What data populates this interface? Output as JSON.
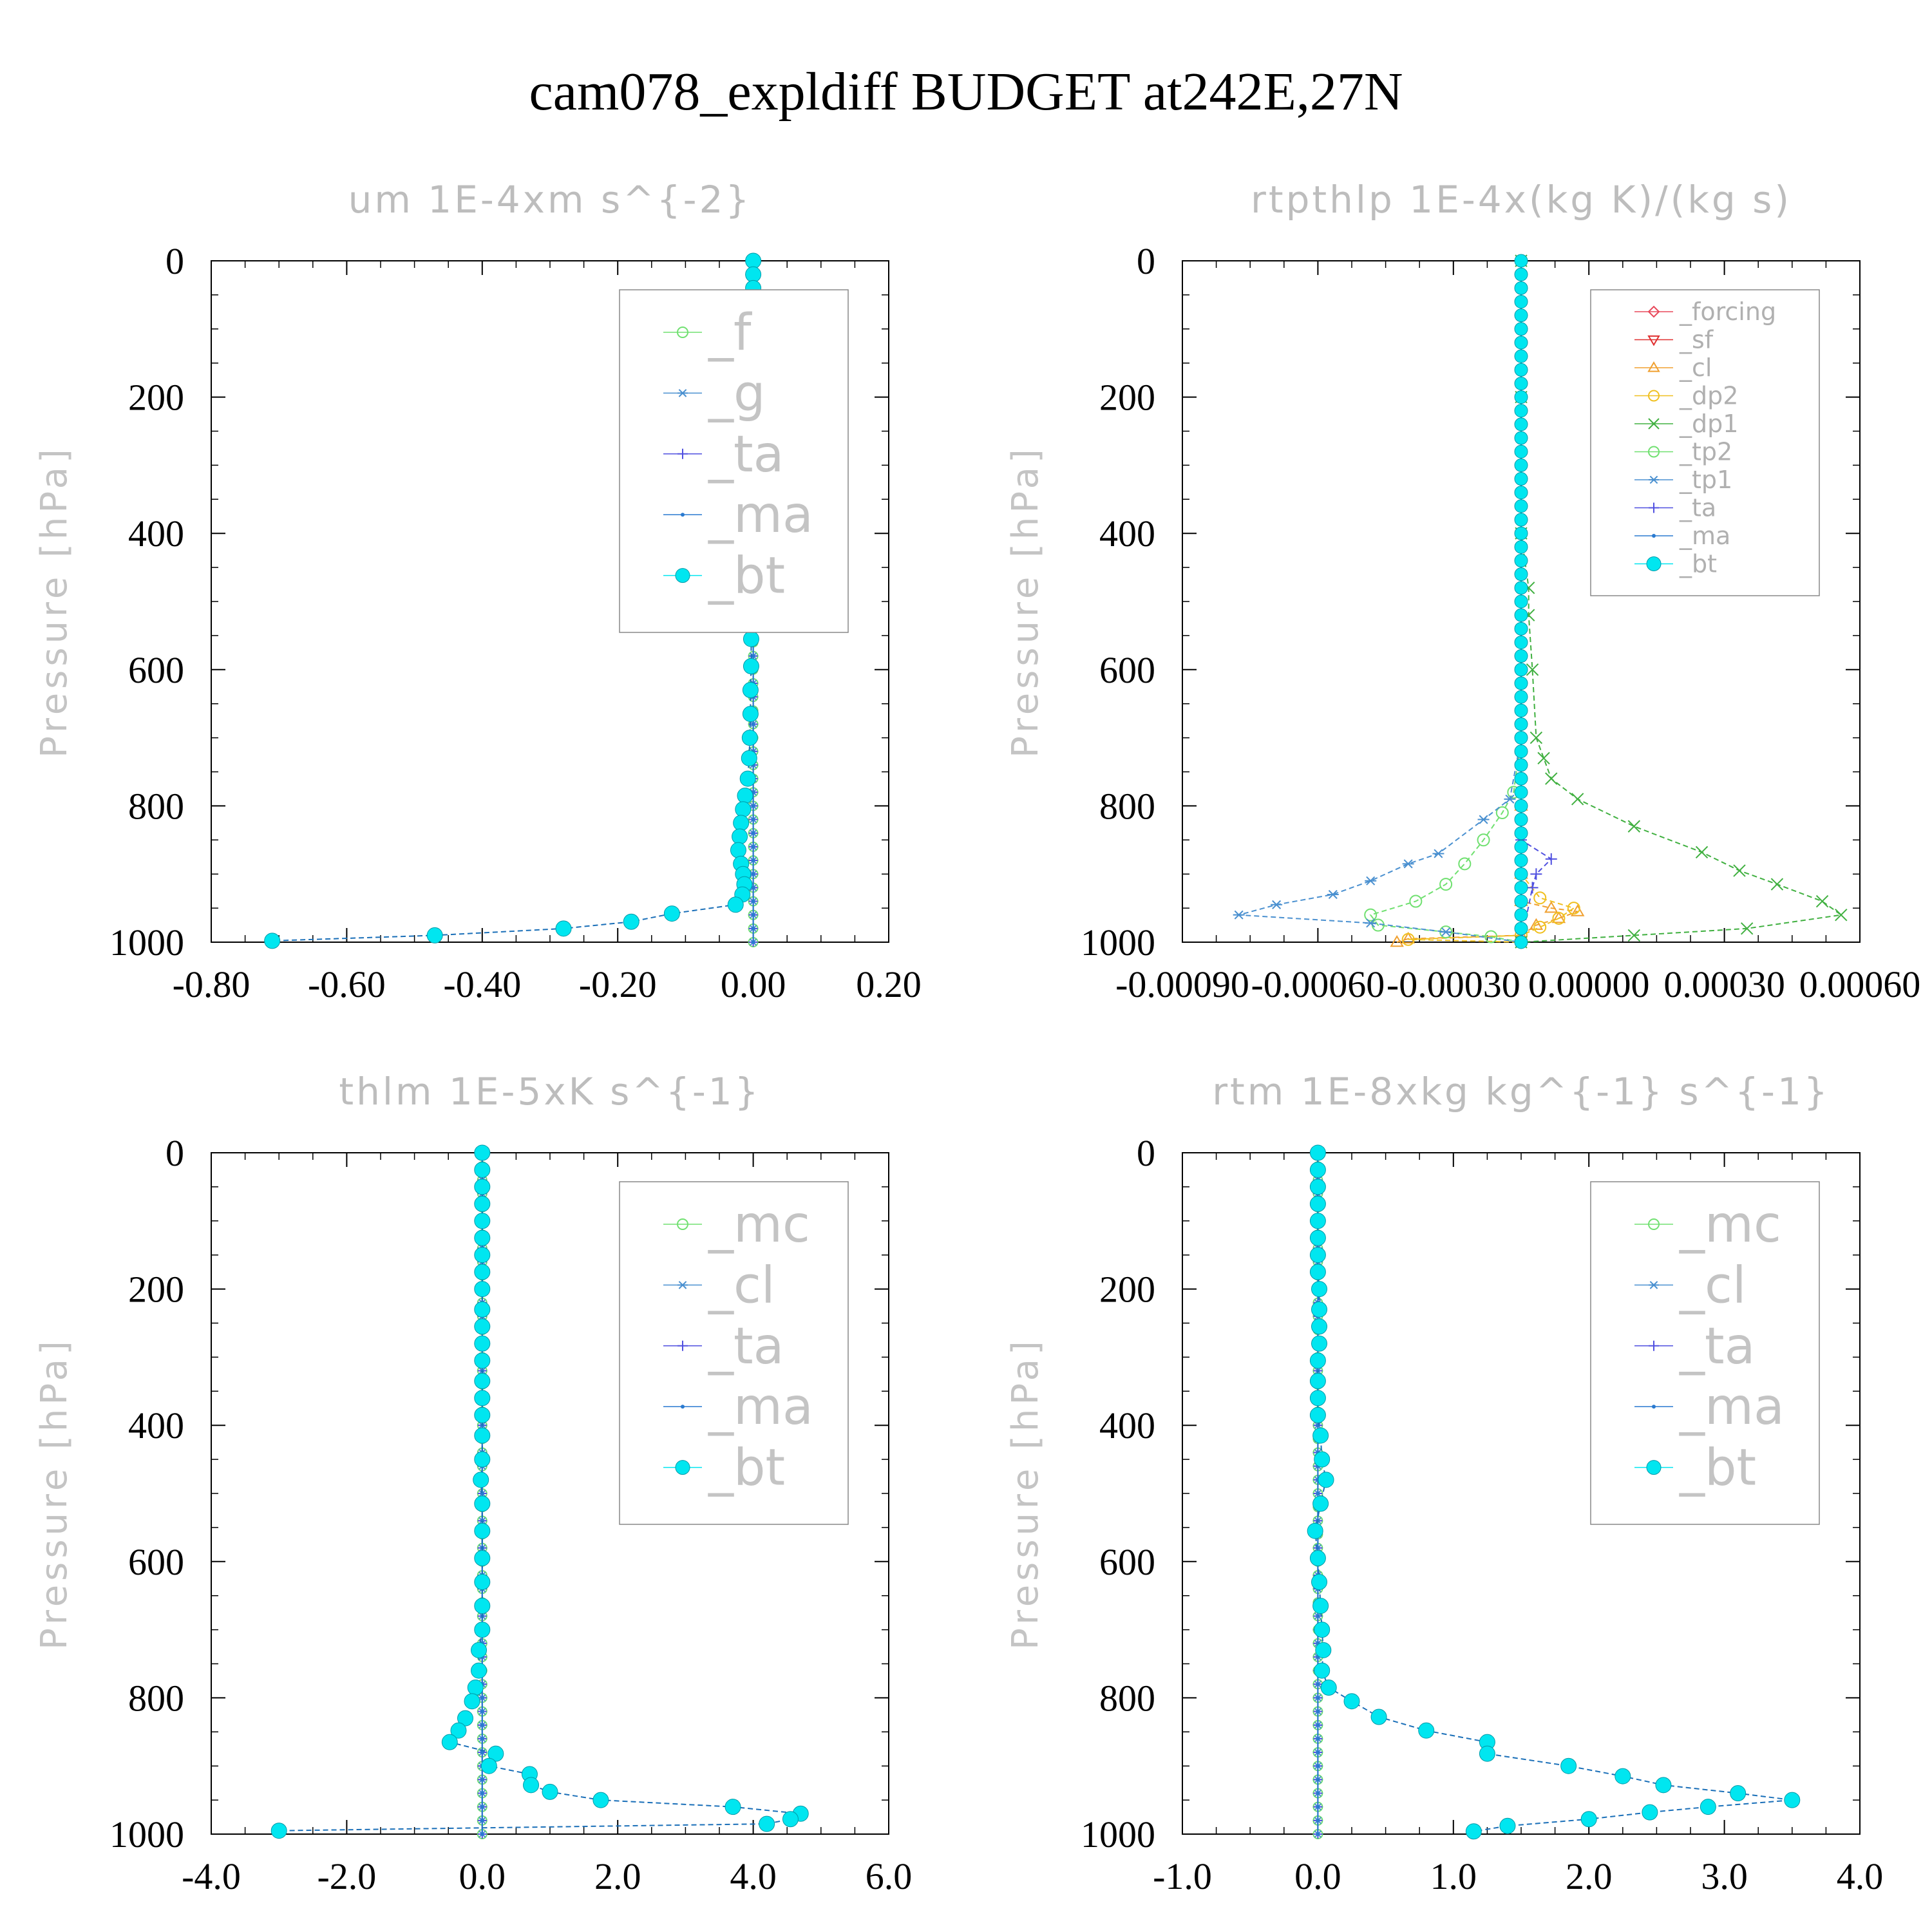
{
  "figure": {
    "title": "cam078_expldiff  BUDGET at242E,27N"
  },
  "colors": {
    "forcing": "#e8485a",
    "sf": "#e03030",
    "cl_small": "#f0a030",
    "dp2": "#f0c020",
    "dp1": "#40b040",
    "tp2": "#70e070",
    "tp1": "#4a90d0",
    "ta": "#5050e0",
    "ma": "#2a7ad0",
    "bt": "#00e6f0",
    "f": "#70e070",
    "g": "#4a90d0",
    "mc": "#70e070",
    "cl": "#4a90d0"
  },
  "chart_data": [
    {
      "type": "line",
      "title": "um  1E-4xm s^{-2}",
      "ylabel": "Pressure [hPa]",
      "xlim": [
        -0.8,
        0.2
      ],
      "ylim": [
        1000,
        0
      ],
      "xticks": [
        "-0.80",
        "-0.60",
        "-0.40",
        "-0.20",
        "0.00",
        "0.20"
      ],
      "yticks": [
        "0",
        "200",
        "400",
        "600",
        "800",
        "1000"
      ],
      "legend": {
        "position": "top-right",
        "size": "large"
      },
      "series": [
        {
          "name": "_f",
          "key": "f",
          "marker": "circle",
          "zero": true
        },
        {
          "name": "_g",
          "key": "g",
          "marker": "star",
          "zero": true
        },
        {
          "name": "_ta",
          "key": "ta",
          "marker": "plus",
          "zero": true
        },
        {
          "name": "_ma",
          "key": "ma",
          "marker": "dot",
          "zero": true
        },
        {
          "name": "_bt",
          "key": "bt",
          "marker": "filled",
          "points": [
            [
              0.0,
              0
            ],
            [
              0.0,
              20
            ],
            [
              0.0,
              40
            ],
            [
              0.0,
              60
            ],
            [
              0.0,
              80
            ],
            [
              0.0,
              100
            ],
            [
              0.0,
              120
            ],
            [
              0.0,
              140
            ],
            [
              0.0,
              160
            ],
            [
              -0.002,
              180
            ],
            [
              0.0,
              200
            ],
            [
              0.0,
              230
            ],
            [
              0.0,
              250
            ],
            [
              0.0,
              270
            ],
            [
              -0.002,
              290
            ],
            [
              0.0,
              315
            ],
            [
              -0.001,
              340
            ],
            [
              -0.001,
              360
            ],
            [
              -0.002,
              385
            ],
            [
              -0.002,
              415
            ],
            [
              -0.003,
              450
            ],
            [
              -0.004,
              480
            ],
            [
              -0.003,
              515
            ],
            [
              -0.003,
              555
            ],
            [
              -0.003,
              595
            ],
            [
              -0.004,
              630
            ],
            [
              -0.004,
              665
            ],
            [
              -0.005,
              700
            ],
            [
              -0.006,
              730
            ],
            [
              -0.008,
              760
            ],
            [
              -0.012,
              785
            ],
            [
              -0.015,
              805
            ],
            [
              -0.018,
              825
            ],
            [
              -0.02,
              845
            ],
            [
              -0.022,
              865
            ],
            [
              -0.018,
              885
            ],
            [
              -0.015,
              900
            ],
            [
              -0.013,
              915
            ],
            [
              -0.016,
              930
            ],
            [
              -0.026,
              945
            ],
            [
              -0.12,
              958
            ],
            [
              -0.18,
              970
            ],
            [
              -0.28,
              980
            ],
            [
              -0.47,
              990
            ],
            [
              -0.71,
              998
            ]
          ]
        }
      ]
    },
    {
      "type": "line",
      "title": "rtpthlp  1E-4x(kg K)/(kg s)",
      "ylabel": "Pressure [hPa]",
      "xlim": [
        -0.0009,
        0.0009
      ],
      "ylim": [
        1000,
        0
      ],
      "xticks": [
        "-0.00090",
        "-0.00060",
        "-0.00030",
        "0.00000",
        "0.00030",
        "0.00060"
      ],
      "yticks": [
        "0",
        "200",
        "400",
        "600",
        "800",
        "1000"
      ],
      "legend": {
        "position": "top-right",
        "size": "small"
      },
      "series": [
        {
          "name": "_forcing",
          "key": "forcing",
          "marker": "diamond",
          "zero": true
        },
        {
          "name": "_sf",
          "key": "sf",
          "marker": "tri-down",
          "zero": true
        },
        {
          "name": "_cl",
          "key": "cl_small",
          "marker": "tri-up",
          "points": [
            [
              0.0,
              800
            ],
            [
              0.0,
              900
            ],
            [
              0.0,
              940
            ],
            [
              8e-05,
              950
            ],
            [
              0.00015,
              955
            ],
            [
              0.0001,
              965
            ],
            [
              4e-05,
              975
            ],
            [
              0.0,
              990
            ],
            [
              -0.0003,
              995
            ],
            [
              -0.00033,
              1000
            ]
          ]
        },
        {
          "name": "_dp2",
          "key": "dp2",
          "marker": "circle",
          "points": [
            [
              0.0,
              800
            ],
            [
              0.0,
              900
            ],
            [
              5e-05,
              935
            ],
            [
              0.00014,
              950
            ],
            [
              0.0001,
              965
            ],
            [
              5e-05,
              978
            ],
            [
              0.0,
              990
            ],
            [
              -0.0003,
              996
            ],
            [
              0.0,
              1000
            ]
          ]
        },
        {
          "name": "_dp1",
          "key": "dp1",
          "marker": "x",
          "points": [
            [
              0.0,
              0
            ],
            [
              0.0,
              200
            ],
            [
              0.0,
              400
            ],
            [
              2e-05,
              480
            ],
            [
              2e-05,
              520
            ],
            [
              3e-05,
              600
            ],
            [
              4e-05,
              700
            ],
            [
              6e-05,
              730
            ],
            [
              8e-05,
              760
            ],
            [
              0.00015,
              790
            ],
            [
              0.0003,
              830
            ],
            [
              0.00048,
              868
            ],
            [
              0.00058,
              895
            ],
            [
              0.00068,
              915
            ],
            [
              0.0008,
              940
            ],
            [
              0.00085,
              960
            ],
            [
              0.0006,
              980
            ],
            [
              0.0003,
              990
            ],
            [
              0.0,
              1000
            ]
          ]
        },
        {
          "name": "_tp2",
          "key": "tp2",
          "marker": "circle",
          "points": [
            [
              0.0,
              0
            ],
            [
              0.0,
              700
            ],
            [
              -2e-05,
              780
            ],
            [
              -5e-05,
              810
            ],
            [
              -0.0001,
              850
            ],
            [
              -0.00015,
              885
            ],
            [
              -0.0002,
              915
            ],
            [
              -0.00028,
              940
            ],
            [
              -0.0004,
              960
            ],
            [
              -0.00038,
              975
            ],
            [
              -0.0002,
              985
            ],
            [
              -8e-05,
              992
            ],
            [
              0.0,
              1000
            ]
          ]
        },
        {
          "name": "_tp1",
          "key": "tp1",
          "marker": "star",
          "points": [
            [
              0.0,
              0
            ],
            [
              0.0,
              700
            ],
            [
              -3e-05,
              790
            ],
            [
              -0.0001,
              820
            ],
            [
              -0.00022,
              870
            ],
            [
              -0.0003,
              885
            ],
            [
              -0.0004,
              910
            ],
            [
              -0.0005,
              930
            ],
            [
              -0.00065,
              945
            ],
            [
              -0.00075,
              960
            ],
            [
              -0.0004,
              972
            ],
            [
              -0.0002,
              985
            ],
            [
              0.0,
              1000
            ]
          ]
        },
        {
          "name": "_ta",
          "key": "ta",
          "marker": "plus",
          "points": [
            [
              0.0,
              0
            ],
            [
              0.0,
              850
            ],
            [
              8e-05,
              878
            ],
            [
              4e-05,
              900
            ],
            [
              3e-05,
              920
            ],
            [
              0.0,
              1000
            ]
          ]
        },
        {
          "name": "_ma",
          "key": "ma",
          "marker": "dot",
          "zero": true
        },
        {
          "name": "_bt",
          "key": "bt",
          "marker": "filled",
          "zero": true
        }
      ]
    },
    {
      "type": "line",
      "title": "thlm  1E-5xK s^{-1}",
      "ylabel": "Pressure [hPa]",
      "xlim": [
        -4.0,
        6.0
      ],
      "ylim": [
        1000,
        0
      ],
      "xticks": [
        "-4.0",
        "-2.0",
        "0.0",
        "2.0",
        "4.0",
        "6.0"
      ],
      "yticks": [
        "0",
        "200",
        "400",
        "600",
        "800",
        "1000"
      ],
      "legend": {
        "position": "top-right",
        "size": "large"
      },
      "series": [
        {
          "name": "_mc",
          "key": "mc",
          "marker": "circle",
          "zero": true
        },
        {
          "name": "_cl",
          "key": "cl",
          "marker": "star",
          "zero": true
        },
        {
          "name": "_ta",
          "key": "ta",
          "marker": "plus",
          "zero": true
        },
        {
          "name": "_ma",
          "key": "ma",
          "marker": "dot",
          "zero": true
        },
        {
          "name": "_bt",
          "key": "bt",
          "marker": "filled",
          "points": [
            [
              0.0,
              0
            ],
            [
              0.0,
              25
            ],
            [
              0.0,
              50
            ],
            [
              0.0,
              75
            ],
            [
              0.0,
              100
            ],
            [
              0.0,
              125
            ],
            [
              0.0,
              150
            ],
            [
              0.0,
              175
            ],
            [
              0.0,
              200
            ],
            [
              0.0,
              230
            ],
            [
              0.0,
              255
            ],
            [
              0.0,
              280
            ],
            [
              0.0,
              305
            ],
            [
              0.0,
              335
            ],
            [
              0.0,
              360
            ],
            [
              0.0,
              385
            ],
            [
              0.0,
              415
            ],
            [
              0.0,
              450
            ],
            [
              -0.02,
              480
            ],
            [
              0.0,
              515
            ],
            [
              0.0,
              555
            ],
            [
              0.0,
              595
            ],
            [
              0.0,
              630
            ],
            [
              0.0,
              665
            ],
            [
              0.0,
              700
            ],
            [
              -0.05,
              730
            ],
            [
              -0.05,
              760
            ],
            [
              -0.1,
              785
            ],
            [
              -0.15,
              805
            ],
            [
              -0.25,
              830
            ],
            [
              -0.35,
              848
            ],
            [
              -0.48,
              865
            ],
            [
              0.2,
              882
            ],
            [
              0.1,
              900
            ],
            [
              0.7,
              912
            ],
            [
              0.72,
              928
            ],
            [
              1.0,
              938
            ],
            [
              1.75,
              950
            ],
            [
              3.7,
              960
            ],
            [
              4.7,
              970
            ],
            [
              4.55,
              978
            ],
            [
              4.2,
              985
            ],
            [
              -3.0,
              995
            ]
          ]
        }
      ]
    },
    {
      "type": "line",
      "title": "rtm  1E-8xkg kg^{-1} s^{-1}",
      "ylabel": "Pressure [hPa]",
      "xlim": [
        -1.0,
        4.0
      ],
      "ylim": [
        1000,
        0
      ],
      "xticks": [
        "-1.0",
        "0.0",
        "1.0",
        "2.0",
        "3.0",
        "4.0"
      ],
      "yticks": [
        "0",
        "200",
        "400",
        "600",
        "800",
        "1000"
      ],
      "legend": {
        "position": "top-right",
        "size": "large"
      },
      "series": [
        {
          "name": "_mc",
          "key": "mc",
          "marker": "circle",
          "zero": true
        },
        {
          "name": "_cl",
          "key": "cl",
          "marker": "star",
          "zero": true
        },
        {
          "name": "_ta",
          "key": "ta",
          "marker": "plus",
          "zero": true
        },
        {
          "name": "_ma",
          "key": "ma",
          "marker": "dot",
          "zero": true
        },
        {
          "name": "_bt",
          "key": "bt",
          "marker": "filled",
          "points": [
            [
              0.0,
              0
            ],
            [
              0.0,
              25
            ],
            [
              0.0,
              50
            ],
            [
              0.0,
              75
            ],
            [
              0.0,
              100
            ],
            [
              0.0,
              125
            ],
            [
              0.0,
              150
            ],
            [
              0.0,
              175
            ],
            [
              0.01,
              200
            ],
            [
              0.01,
              230
            ],
            [
              0.01,
              255
            ],
            [
              0.01,
              280
            ],
            [
              0.0,
              305
            ],
            [
              0.0,
              335
            ],
            [
              0.0,
              360
            ],
            [
              0.0,
              385
            ],
            [
              0.02,
              415
            ],
            [
              0.03,
              450
            ],
            [
              0.06,
              480
            ],
            [
              0.02,
              515
            ],
            [
              -0.02,
              555
            ],
            [
              0.0,
              595
            ],
            [
              0.01,
              630
            ],
            [
              0.02,
              665
            ],
            [
              0.03,
              700
            ],
            [
              0.04,
              730
            ],
            [
              0.03,
              760
            ],
            [
              0.08,
              785
            ],
            [
              0.25,
              805
            ],
            [
              0.45,
              828
            ],
            [
              0.8,
              848
            ],
            [
              1.25,
              865
            ],
            [
              1.25,
              882
            ],
            [
              1.85,
              900
            ],
            [
              2.25,
              915
            ],
            [
              2.55,
              928
            ],
            [
              3.1,
              940
            ],
            [
              3.5,
              950
            ],
            [
              2.88,
              960
            ],
            [
              2.45,
              968
            ],
            [
              2.0,
              978
            ],
            [
              1.4,
              988
            ],
            [
              1.15,
              996
            ]
          ]
        }
      ]
    }
  ]
}
